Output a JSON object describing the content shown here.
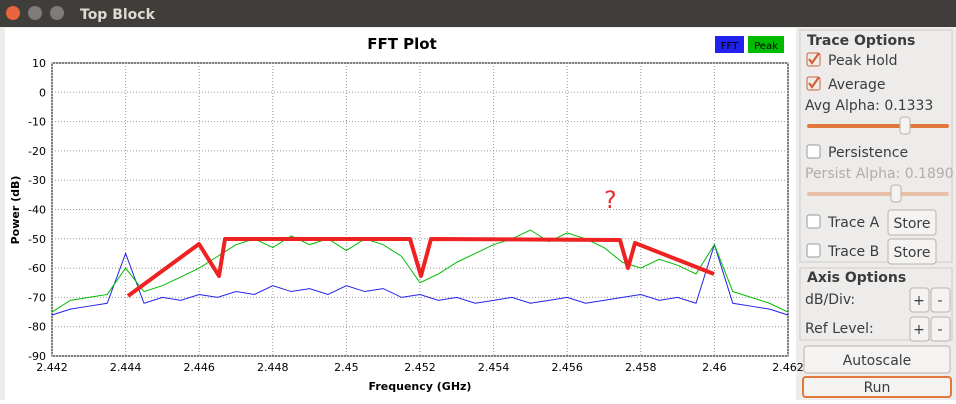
{
  "window": {
    "title": "Top Block"
  },
  "chart_data": {
    "type": "line",
    "title": "FFT Plot",
    "x_label": "Frequency (GHz)",
    "y_label": "Power (dB)",
    "x": [
      2.442,
      2.4425,
      2.443,
      2.4435,
      2.444,
      2.4445,
      2.445,
      2.4455,
      2.446,
      2.4465,
      2.447,
      2.4475,
      2.448,
      2.4485,
      2.449,
      2.4495,
      2.45,
      2.4505,
      2.451,
      2.4515,
      2.452,
      2.4525,
      2.453,
      2.4535,
      2.454,
      2.4545,
      2.455,
      2.4555,
      2.456,
      2.4565,
      2.457,
      2.4575,
      2.458,
      2.4585,
      2.459,
      2.4595,
      2.46,
      2.4605,
      2.461,
      2.4615,
      2.462
    ],
    "series": [
      {
        "name": "FFT",
        "color": "#2222ee",
        "values": [
          -76,
          -74,
          -73,
          -72,
          -55,
          -72,
          -70,
          -71,
          -69,
          -70,
          -68,
          -69,
          -66,
          -68,
          -67,
          -69,
          -66,
          -68,
          -67,
          -70,
          -69,
          -71,
          -70,
          -72,
          -71,
          -70,
          -72,
          -71,
          -70,
          -72,
          -71,
          -70,
          -69,
          -71,
          -70,
          -72,
          -52,
          -72,
          -73,
          -74,
          -76
        ]
      },
      {
        "name": "Peak",
        "color": "#00bb00",
        "values": [
          -75,
          -71,
          -70,
          -69,
          -60,
          -68,
          -66,
          -63,
          -60,
          -56,
          -52,
          -50,
          -53,
          -49,
          -52,
          -50,
          -54,
          -50,
          -52,
          -56,
          -65,
          -62,
          -58,
          -55,
          -52,
          -50,
          -47,
          -51,
          -48,
          -50,
          -53,
          -58,
          -60,
          -57,
          -59,
          -62,
          -52,
          -68,
          -70,
          -72,
          -75
        ]
      }
    ],
    "xlim": [
      2.442,
      2.462
    ],
    "xticks": [
      2.442,
      2.444,
      2.446,
      2.448,
      2.45,
      2.452,
      2.454,
      2.456,
      2.458,
      2.46,
      2.462
    ],
    "ylim": [
      -90,
      10
    ],
    "yticks": [
      -90,
      -80,
      -70,
      -60,
      -50,
      -40,
      -30,
      -20,
      -10,
      0,
      10
    ],
    "grid": true,
    "legend": "top-right",
    "annotation": "?"
  },
  "controls": {
    "trace_options": "Trace Options",
    "peak_hold": {
      "label": "Peak Hold",
      "checked": true
    },
    "average": {
      "label": "Average",
      "checked": true
    },
    "avg_alpha": "Avg Alpha: 0.1333",
    "persistence": {
      "label": "Persistence",
      "checked": false
    },
    "persist_alpha": "Persist Alpha: 0.1890",
    "trace_a": {
      "label": "Trace A",
      "checked": false,
      "button": "Store"
    },
    "trace_b": {
      "label": "Trace B",
      "checked": false,
      "button": "Store"
    },
    "axis_options": "Axis Options",
    "db_div": {
      "label": "dB/Div:",
      "plus": "+",
      "minus": "-"
    },
    "ref_level": {
      "label": "Ref Level:",
      "plus": "+",
      "minus": "-"
    },
    "autoscale": "Autoscale",
    "run": "Run"
  }
}
